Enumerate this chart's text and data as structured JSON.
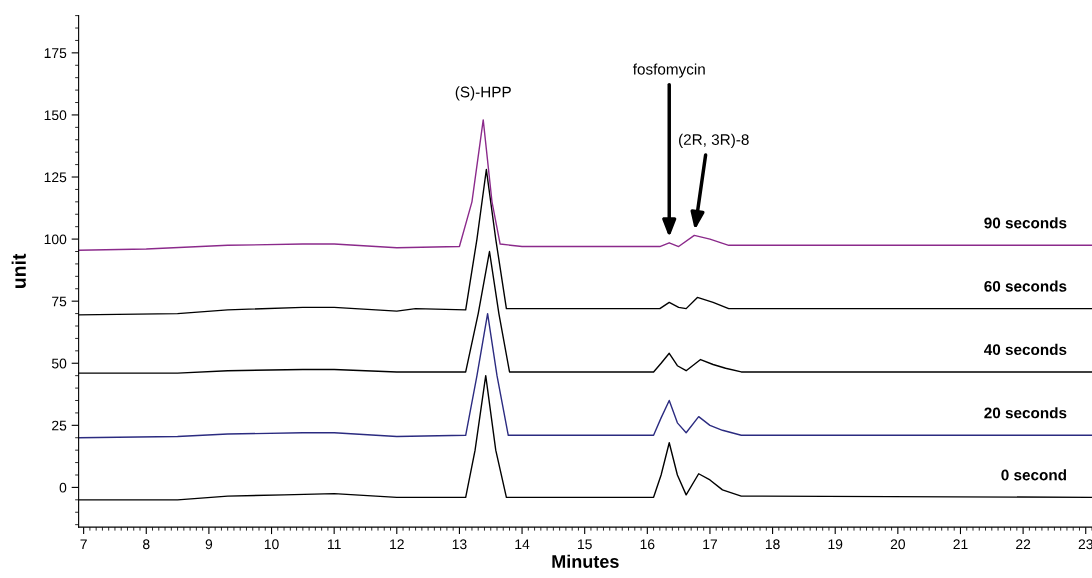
{
  "chart_data": {
    "type": "line",
    "xlabel": "Minutes",
    "ylabel": "unit",
    "xlim": [
      6.92,
      23.1
    ],
    "ylim": [
      -16,
      190
    ],
    "xticks": [
      7,
      8,
      9,
      10,
      11,
      12,
      13,
      14,
      15,
      16,
      17,
      18,
      19,
      20,
      21,
      22,
      23
    ],
    "yticks": [
      0,
      25,
      50,
      75,
      100,
      125,
      150,
      175
    ],
    "grid": false,
    "legend": false,
    "marker": "none",
    "line_style": "solid",
    "annotations": [
      {
        "text": "(S)-HPP",
        "x": 13.38,
        "y": 148
      },
      {
        "text": "fosfomycin",
        "x": 16.35,
        "y": 99
      },
      {
        "text": "(2R, 3R)-8",
        "x": 16.75,
        "y": 102
      }
    ],
    "series": [
      {
        "name": "0 second",
        "color": "#000000",
        "x": [
          6.92,
          8.5,
          9.3,
          10.2,
          11,
          12,
          13.1,
          13.25,
          13.42,
          13.58,
          13.75,
          15.7,
          16.1,
          16.22,
          16.35,
          16.48,
          16.62,
          16.82,
          17.0,
          17.2,
          17.5,
          23.1
        ],
        "values": [
          -5,
          -5,
          -3.5,
          -3,
          -2.5,
          -4,
          -4,
          15,
          45,
          15,
          -4,
          -4,
          -4,
          5,
          18,
          5,
          -3,
          5.5,
          3,
          -1,
          -3.5,
          -4
        ]
      },
      {
        "name": "20 seconds",
        "color": "#2b2b80",
        "x": [
          6.92,
          8.5,
          9.3,
          10.5,
          11,
          12,
          13.1,
          13.28,
          13.45,
          13.6,
          13.78,
          16.1,
          16.22,
          16.35,
          16.48,
          16.62,
          16.82,
          17.0,
          17.2,
          17.5,
          23.1
        ],
        "values": [
          20,
          20.5,
          21.5,
          22,
          22,
          20.5,
          21,
          45,
          70,
          45,
          21,
          21,
          28,
          35,
          26,
          22,
          28.5,
          25,
          23,
          21,
          21
        ]
      },
      {
        "name": "40 seconds",
        "color": "#000000",
        "x": [
          6.92,
          8.5,
          9.3,
          10.5,
          11,
          12,
          13.1,
          13.3,
          13.48,
          13.63,
          13.8,
          16.1,
          16.22,
          16.35,
          16.48,
          16.62,
          16.85,
          17.05,
          17.25,
          17.5,
          23.1
        ],
        "values": [
          46,
          46,
          47,
          47.5,
          47.5,
          46.5,
          46.5,
          70,
          95,
          70,
          46.5,
          46.5,
          50,
          54,
          49,
          47,
          51.5,
          49.5,
          48,
          46.5,
          46.5
        ]
      },
      {
        "name": "60 seconds",
        "color": "#000000",
        "x": [
          6.92,
          8.5,
          9.3,
          10.5,
          11,
          12,
          12.3,
          13.1,
          13.28,
          13.43,
          13.58,
          13.75,
          16.2,
          16.35,
          16.5,
          16.62,
          16.8,
          17.05,
          17.3,
          23.1
        ],
        "values": [
          69.5,
          70,
          71.5,
          72.5,
          72.5,
          71,
          72,
          71.5,
          100,
          128,
          100,
          72,
          72,
          74.5,
          72.5,
          72,
          76.5,
          74.5,
          72,
          72
        ]
      },
      {
        "name": "90 seconds",
        "color": "#8b2a8b",
        "x": [
          6.92,
          8,
          9.3,
          10.5,
          11,
          12,
          13.0,
          13.2,
          13.38,
          13.52,
          13.65,
          14,
          16.2,
          16.35,
          16.5,
          16.75,
          17.0,
          17.3,
          23.1
        ],
        "values": [
          95.5,
          96,
          97.5,
          98,
          98,
          96.5,
          97,
          115,
          148,
          115,
          98,
          97,
          97,
          98.5,
          97,
          101.5,
          100,
          97.5,
          97.5
        ]
      }
    ]
  }
}
